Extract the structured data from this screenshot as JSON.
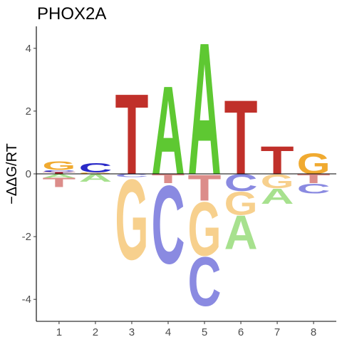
{
  "chart_data": {
    "type": "sequence-logo",
    "title": "PHOX2A",
    "xlabel": "",
    "ylabel": "−ΔΔG/RT",
    "xticks": [
      "1",
      "2",
      "3",
      "4",
      "5",
      "6",
      "7",
      "8"
    ],
    "yticks": [
      "-4",
      "-2",
      "0",
      "2",
      "4"
    ],
    "ylim": [
      -4.7,
      4.7
    ],
    "colors": {
      "A": "#5ec832",
      "C": "#2a2ac8",
      "G": "#f0aa30",
      "T": "#c0302a"
    },
    "positions": [
      {
        "position": 1,
        "above": [
          {
            "letter": "T",
            "value": 0.06
          },
          {
            "letter": "C",
            "value": 0.06
          },
          {
            "letter": "G",
            "value": 0.28
          }
        ],
        "below": [
          {
            "letter": "A",
            "value": -0.12
          },
          {
            "letter": "T",
            "value": -0.3
          }
        ]
      },
      {
        "position": 2,
        "above": [
          {
            "letter": "G",
            "value": 0.05
          },
          {
            "letter": "C",
            "value": 0.3
          }
        ],
        "below": [
          {
            "letter": "A",
            "value": -0.25
          }
        ]
      },
      {
        "position": 3,
        "above": [
          {
            "letter": "T",
            "value": 2.62
          }
        ],
        "below": [
          {
            "letter": "C",
            "value": -0.1
          },
          {
            "letter": "G",
            "value": -2.62
          }
        ]
      },
      {
        "position": 4,
        "above": [
          {
            "letter": "A",
            "value": 2.88
          }
        ],
        "below": [
          {
            "letter": "T",
            "value": -0.3
          },
          {
            "letter": "C",
            "value": -2.55
          }
        ]
      },
      {
        "position": 5,
        "above": [
          {
            "letter": "A",
            "value": 4.3
          }
        ],
        "below": [
          {
            "letter": "T",
            "value": -0.85
          },
          {
            "letter": "G",
            "value": -1.75
          },
          {
            "letter": "C",
            "value": -1.6
          }
        ]
      },
      {
        "position": 6,
        "above": [
          {
            "letter": "T",
            "value": 2.42
          }
        ],
        "below": [
          {
            "letter": "C",
            "value": -0.55
          },
          {
            "letter": "G",
            "value": -0.75
          },
          {
            "letter": "A",
            "value": -1.1
          }
        ]
      },
      {
        "position": 7,
        "above": [
          {
            "letter": "T",
            "value": 0.9
          }
        ],
        "below": [
          {
            "letter": "G",
            "value": -0.45
          },
          {
            "letter": "A",
            "value": -0.5
          }
        ]
      },
      {
        "position": 8,
        "above": [
          {
            "letter": "G",
            "value": 0.68
          }
        ],
        "below": [
          {
            "letter": "T",
            "value": -0.3
          },
          {
            "letter": "C",
            "value": -0.32
          }
        ]
      }
    ]
  }
}
